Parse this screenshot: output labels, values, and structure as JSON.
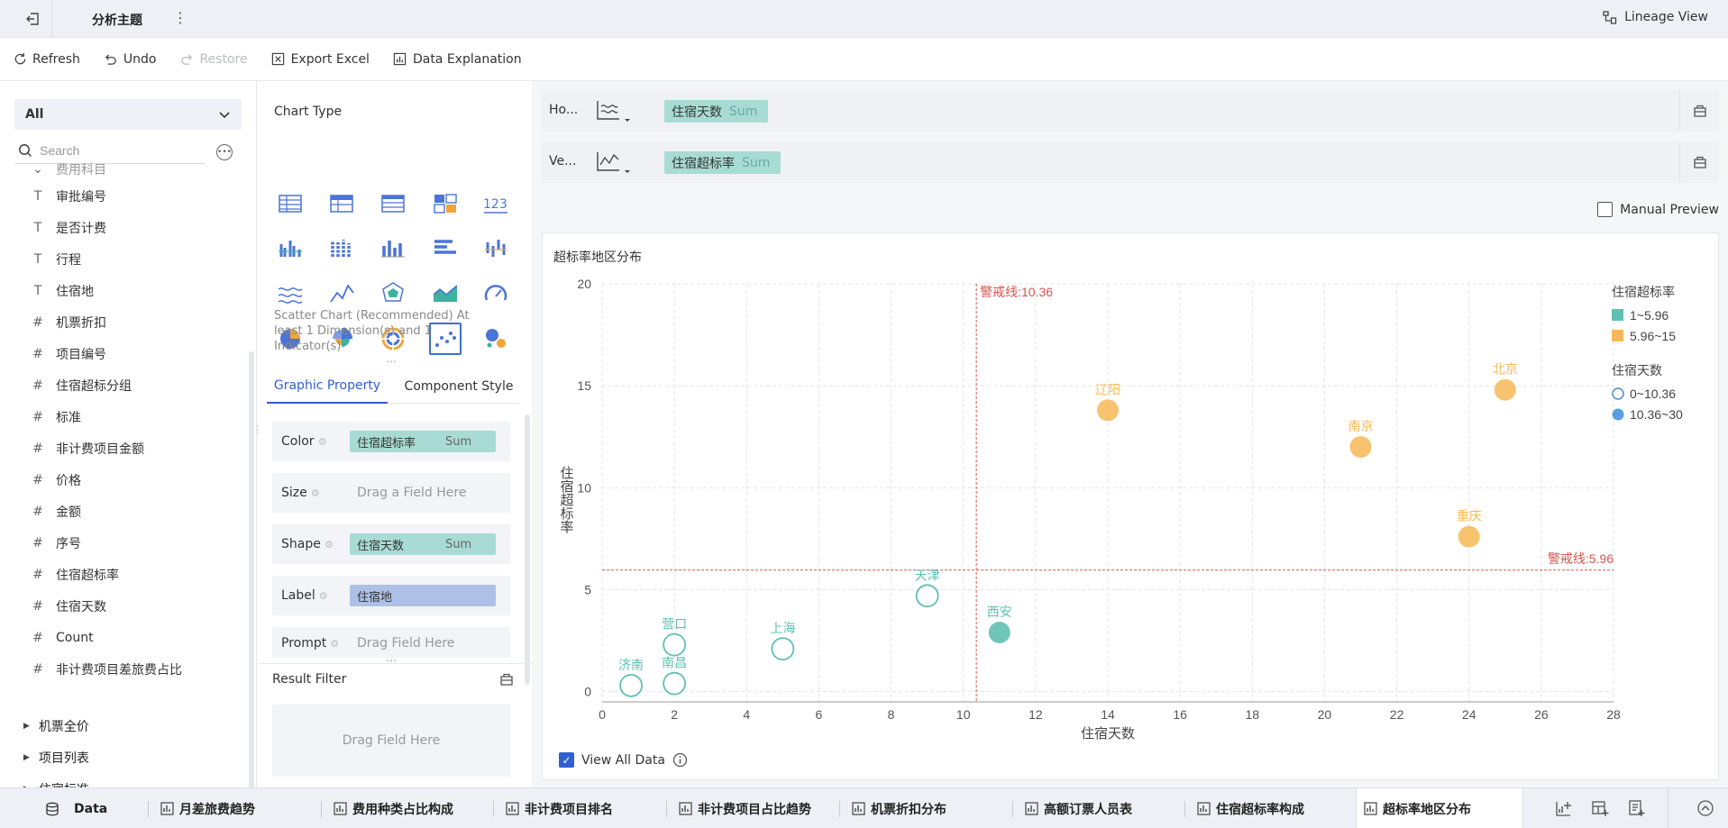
{
  "topbar": {
    "subject_title": "分析主题",
    "more": "⋮",
    "lineage_label": "Lineage View"
  },
  "toolbar": {
    "refresh": "Refresh",
    "undo": "Undo",
    "restore": "Restore",
    "export_excel": "Export Excel",
    "data_explanation": "Data Explanation"
  },
  "left": {
    "dimension_select": "All",
    "search_placeholder": "Search",
    "partial_item": "费用科目",
    "fields": [
      {
        "type": "T",
        "label": "审批编号"
      },
      {
        "type": "T",
        "label": "是否计费"
      },
      {
        "type": "T",
        "label": "行程"
      },
      {
        "type": "T",
        "label": "住宿地"
      },
      {
        "type": "#",
        "label": "机票折扣"
      },
      {
        "type": "#",
        "label": "项目编号"
      },
      {
        "type": "#",
        "label": "住宿超标分组"
      },
      {
        "type": "#",
        "label": "标准"
      },
      {
        "type": "#",
        "label": "非计费项目金额"
      },
      {
        "type": "#",
        "label": "价格"
      },
      {
        "type": "#",
        "label": "金额"
      },
      {
        "type": "#",
        "label": "序号"
      },
      {
        "type": "#",
        "label": "住宿超标率"
      },
      {
        "type": "#",
        "label": "住宿天数"
      },
      {
        "type": "#",
        "label": "Count"
      },
      {
        "type": "#",
        "label": "非计费项目差旅费占比"
      }
    ],
    "groups": [
      "机票全价",
      "项目列表",
      "住宿标准"
    ]
  },
  "middle": {
    "chart_type_title": "Chart Type",
    "chart_type_desc": "Scatter Chart (Recommended) At least 1 Dimension(s) and 1 Indicator(s)",
    "tabs": [
      "Graphic Property",
      "Component Style"
    ],
    "props": {
      "color_label": "Color",
      "color_field": "住宿超标率",
      "color_agg": "Sum",
      "size_label": "Size",
      "size_hint": "Drag a Field Here",
      "shape_label": "Shape",
      "shape_field": "住宿天数",
      "shape_agg": "Sum",
      "label_label": "Label",
      "label_field": "住宿地",
      "prompt_label": "Prompt",
      "prompt_hint": "Drag Field Here"
    },
    "result_filter": "Result Filter",
    "filter_hint": "Drag Field Here"
  },
  "axes": {
    "horizontal_label": "Ho...",
    "horizontal_field": "住宿天数",
    "horizontal_agg": "Sum",
    "vertical_label": "Ve...",
    "vertical_field": "住宿超标率",
    "vertical_agg": "Sum"
  },
  "manual_preview": "Manual Preview",
  "view_all_data": "View All Data",
  "chart_data": {
    "type": "scatter",
    "title": "超标率地区分布",
    "xlabel": "住宿天数",
    "ylabel": "住宿超标率",
    "xlim": [
      0,
      28
    ],
    "ylim": [
      -0.5,
      20
    ],
    "xticks": [
      0,
      2,
      4,
      6,
      8,
      10,
      12,
      14,
      16,
      18,
      20,
      22,
      24,
      26,
      28
    ],
    "yticks": [
      0,
      5,
      10,
      15,
      20
    ],
    "grid": true,
    "colors": {
      "low": "#5fc0b0",
      "high": "#f7b955",
      "ref": "#d9534f"
    },
    "points": [
      {
        "label": "济南",
        "x": 0.8,
        "y": 0.3,
        "group": "low",
        "filled": false
      },
      {
        "label": "南昌",
        "x": 2.0,
        "y": 0.4,
        "group": "low",
        "filled": false
      },
      {
        "label": "营口",
        "x": 2.0,
        "y": 2.3,
        "group": "low",
        "filled": false
      },
      {
        "label": "上海",
        "x": 5.0,
        "y": 2.1,
        "group": "low",
        "filled": false
      },
      {
        "label": "天津",
        "x": 9.0,
        "y": 4.7,
        "group": "low",
        "filled": false
      },
      {
        "label": "西安",
        "x": 11.0,
        "y": 2.9,
        "group": "low",
        "filled": true
      },
      {
        "label": "辽阳",
        "x": 14.0,
        "y": 13.8,
        "group": "high",
        "filled": true
      },
      {
        "label": "南京",
        "x": 21.0,
        "y": 12.0,
        "group": "high",
        "filled": true
      },
      {
        "label": "重庆",
        "x": 24.0,
        "y": 7.6,
        "group": "high",
        "filled": true
      },
      {
        "label": "北京",
        "x": 25.0,
        "y": 14.8,
        "group": "high",
        "filled": true
      }
    ],
    "reference_lines": [
      {
        "axis": "x",
        "value": 10.36,
        "label": "警戒线:10.36"
      },
      {
        "axis": "y",
        "value": 5.96,
        "label": "警戒线:5.96"
      }
    ],
    "legend": {
      "placement": "right",
      "color_title": "住宿超标率",
      "color_items": [
        {
          "label": "1~5.96",
          "color": "#5fc0b0"
        },
        {
          "label": "5.96~15",
          "color": "#f7b955"
        }
      ],
      "shape_title": "住宿天数",
      "shape_items": [
        {
          "label": "0~10.36",
          "filled": false
        },
        {
          "label": "10.36~30",
          "filled": true
        }
      ]
    }
  },
  "bottom_tabs": {
    "data_tab": "Data",
    "tabs": [
      "月差旅费趋势",
      "费用种类占比构成",
      "非计费项目排名",
      "非计费项目占比趋势",
      "机票折扣分布",
      "高额订票人员表",
      "住宿超标率构成",
      "超标率地区分布"
    ],
    "active_index": 7
  }
}
